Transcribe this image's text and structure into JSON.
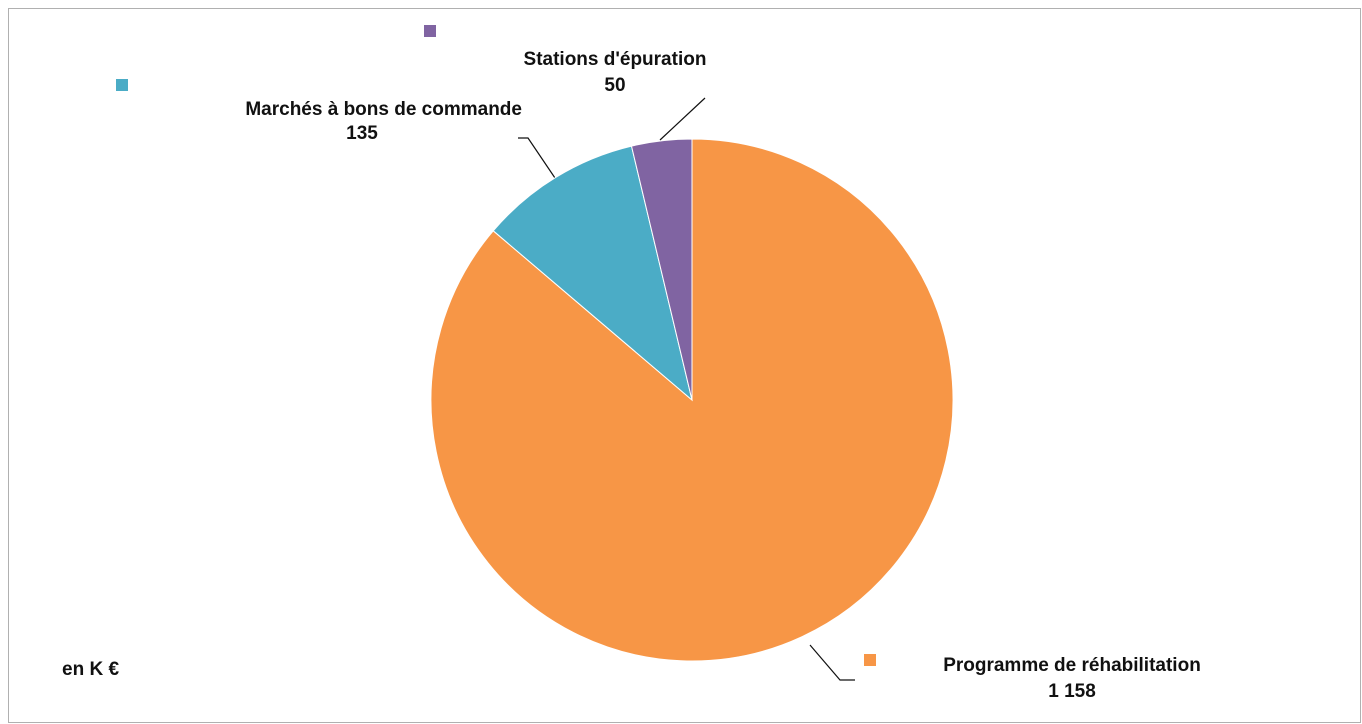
{
  "chart_data": {
    "type": "pie",
    "unit_note": "en K €",
    "categories": [
      "Programme de réhabilitation",
      "Marchés à bons de commande",
      "Stations d'épuration"
    ],
    "values": [
      1158,
      135,
      50
    ],
    "value_labels": [
      "1 158",
      "135",
      "50"
    ],
    "colors": [
      "#f79646",
      "#4bacc6",
      "#8064a2"
    ]
  }
}
